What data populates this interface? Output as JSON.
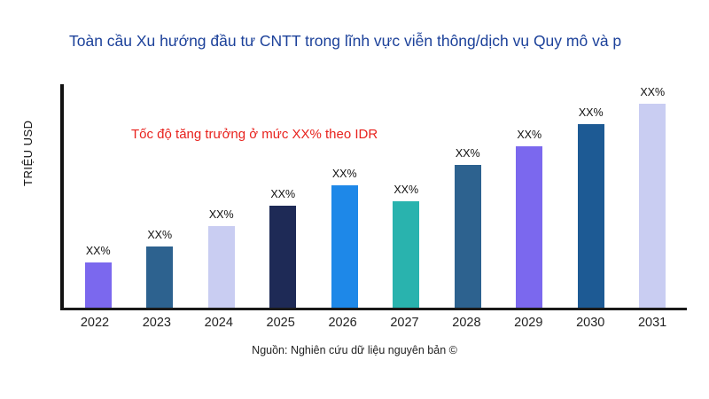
{
  "chart_data": {
    "type": "bar",
    "title": "Toàn cầu Xu hướng đầu tư CNTT trong lĩnh vực viễn thông/dịch vụ Quy mô và p",
    "ylabel": "TRIỆU USD",
    "xlabel": "",
    "categories": [
      "2022",
      "2023",
      "2024",
      "2025",
      "2026",
      "2027",
      "2028",
      "2029",
      "2030",
      "2031"
    ],
    "values": [
      22,
      30,
      40,
      50,
      60,
      52,
      70,
      79,
      90,
      100
    ],
    "bar_labels": [
      "XX%",
      "XX%",
      "XX%",
      "XX%",
      "XX%",
      "XX%",
      "XX%",
      "XX%",
      "XX%",
      "XX%"
    ],
    "bar_colors": [
      "#7b68ee",
      "#2d628f",
      "#c9cdf2",
      "#1e2a56",
      "#1e88e8",
      "#29b3ae",
      "#2d628f",
      "#7b68ee",
      "#1d5a94",
      "#c9cdf2"
    ],
    "ylim": [
      0,
      100
    ],
    "grid": false,
    "legend": "none",
    "annotation": "Tốc độ tăng trưởng ở mức XX% theo IDR",
    "annotation_color": "#e8221d",
    "title_color": "#1c419a",
    "source": "Nguồn: Nghiên cứu dữ liệu nguyên bản ©"
  }
}
